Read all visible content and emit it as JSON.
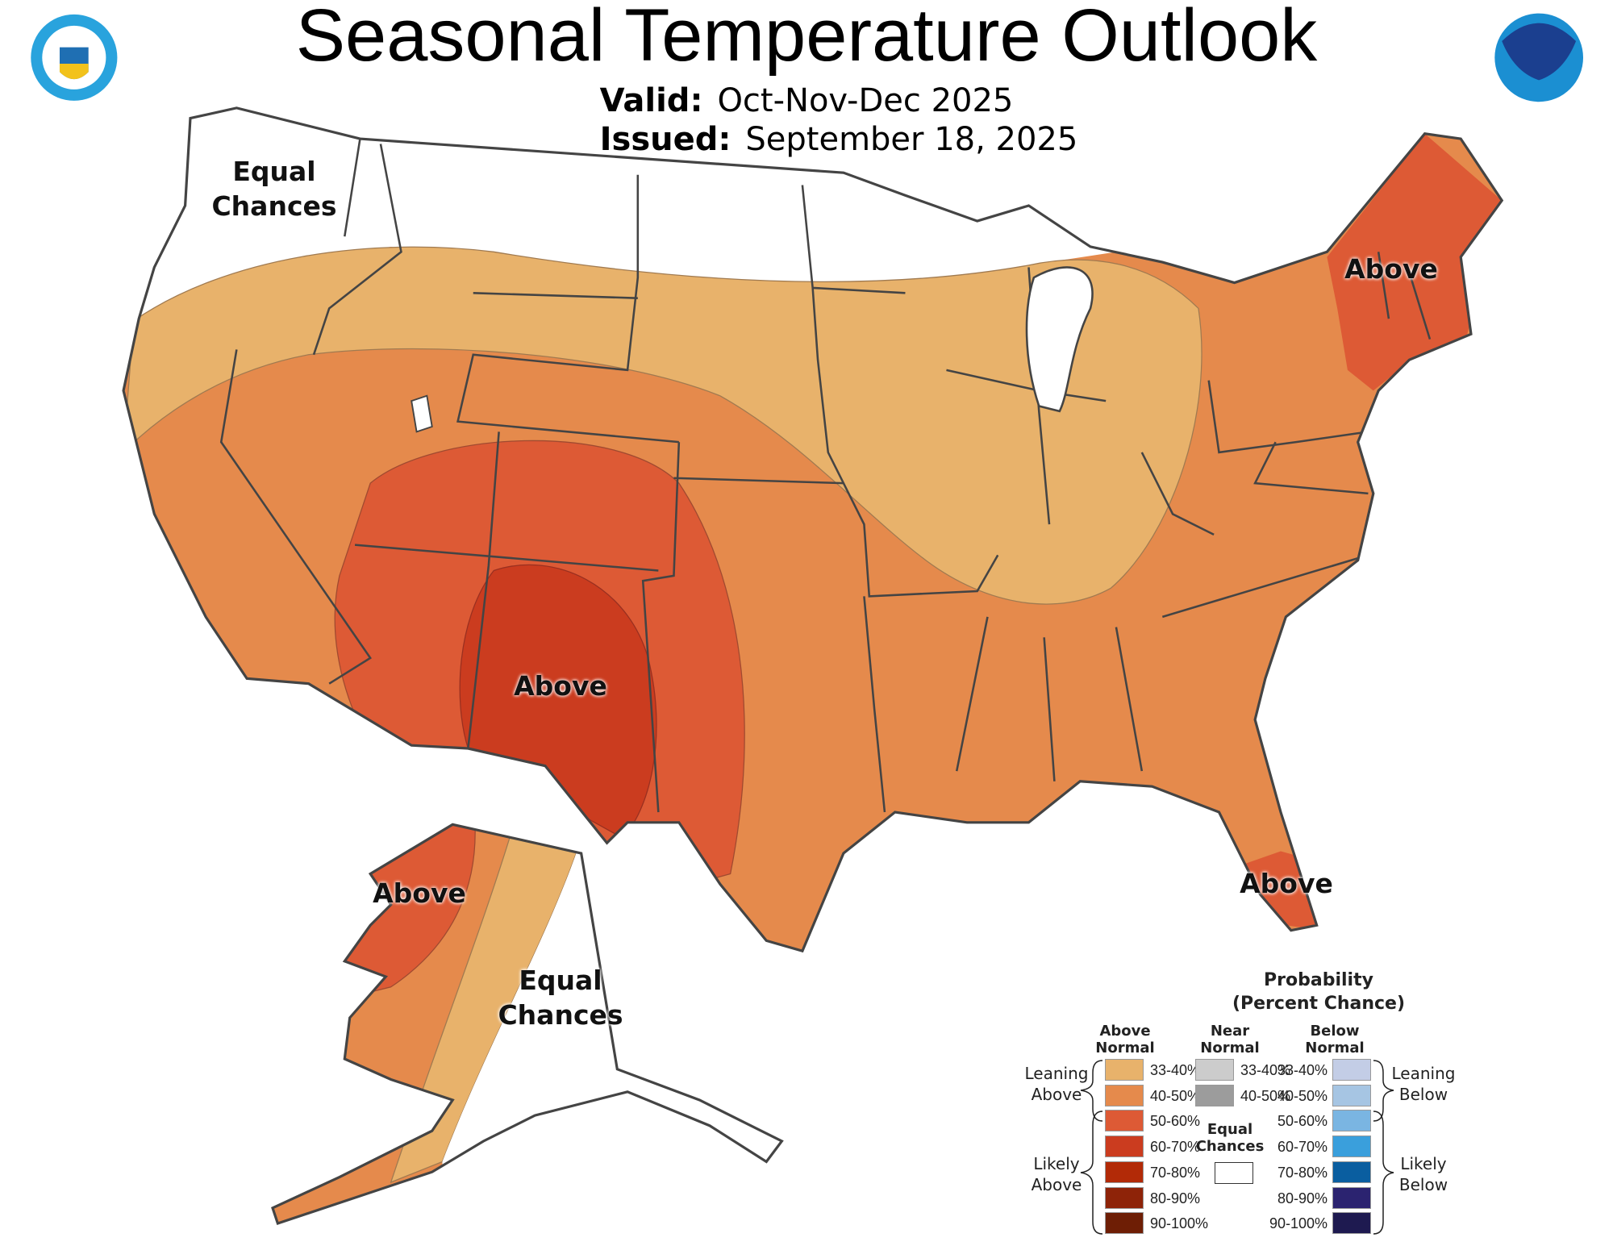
{
  "header": {
    "title": "Seasonal Temperature Outlook",
    "valid_label": "Valid:",
    "valid_value": "Oct-Nov-Dec 2025",
    "issued_label": "Issued:",
    "issued_value": "September 18, 2025"
  },
  "logos": {
    "left": "Department of Commerce - United States of America",
    "right": "NOAA"
  },
  "map_labels": {
    "northwest": "Equal Chances",
    "northeast": "Above",
    "southwest": "Above",
    "florida": "Above",
    "alaska_west": "Above",
    "alaska_east": "Equal Chances"
  },
  "legend": {
    "title1": "Probability",
    "title2": "(Percent Chance)",
    "above_header": "Above Normal",
    "near_header": "Near Normal",
    "below_header": "Below Normal",
    "leaning_above": "Leaning Above",
    "likely_above": "Likely Above",
    "leaning_below": "Leaning Below",
    "likely_below": "Likely Below",
    "equal_chances": "Equal Chances",
    "above": [
      {
        "range": "33-40%",
        "color": "#E8B26B"
      },
      {
        "range": "40-50%",
        "color": "#E58A4C"
      },
      {
        "range": "50-60%",
        "color": "#DD5A35"
      },
      {
        "range": "60-70%",
        "color": "#CB3C1F"
      },
      {
        "range": "70-80%",
        "color": "#B22A07"
      },
      {
        "range": "80-90%",
        "color": "#8E2308"
      },
      {
        "range": "90-100%",
        "color": "#6E1E05"
      }
    ],
    "near": [
      {
        "range": "33-40%",
        "color": "#CCCCCC"
      },
      {
        "range": "40-50%",
        "color": "#9C9C9C"
      }
    ],
    "below": [
      {
        "range": "33-40%",
        "color": "#C3CDE6"
      },
      {
        "range": "40-50%",
        "color": "#A6C5E3"
      },
      {
        "range": "50-60%",
        "color": "#7AB5E2"
      },
      {
        "range": "60-70%",
        "color": "#3A9FDC"
      },
      {
        "range": "70-80%",
        "color": "#0A5EA0"
      },
      {
        "range": "80-90%",
        "color": "#2B2370"
      },
      {
        "range": "90-100%",
        "color": "#1E1A50"
      }
    ]
  }
}
